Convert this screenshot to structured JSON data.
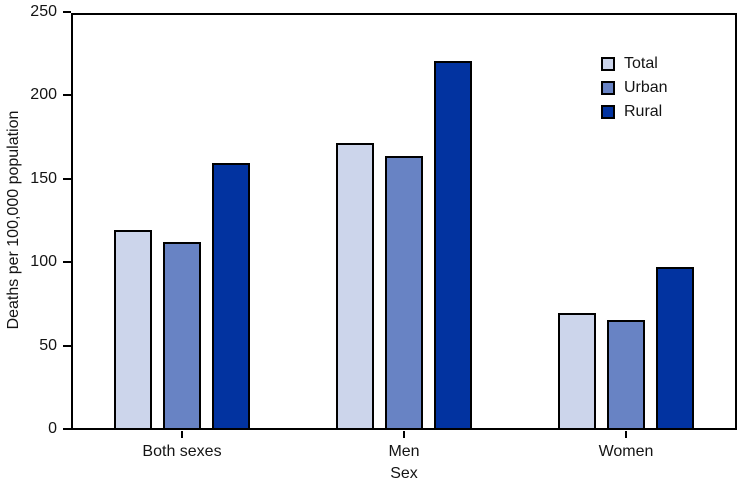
{
  "figure": {
    "background_color": "#ffffff",
    "text_color": "#141414",
    "axis_color": "#000000"
  },
  "chart_data": {
    "type": "bar",
    "title": "",
    "xlabel": "Sex",
    "ylabel": "Deaths per 100,000 population",
    "categories": [
      "Both sexes",
      "Men",
      "Women"
    ],
    "series": [
      {
        "name": "Total",
        "color": "#ccd5eb",
        "values": [
          120,
          172,
          70
        ]
      },
      {
        "name": "Urban",
        "color": "#6883c4",
        "values": [
          113,
          164,
          66
        ]
      },
      {
        "name": "Rural",
        "color": "#0233a0",
        "values": [
          160,
          221,
          98
        ]
      }
    ],
    "ylim": [
      0,
      250
    ],
    "yticks": [
      0,
      50,
      100,
      150,
      200,
      250
    ],
    "grid": false,
    "legend_position": "upper right",
    "bar_border_color": "#000000"
  }
}
